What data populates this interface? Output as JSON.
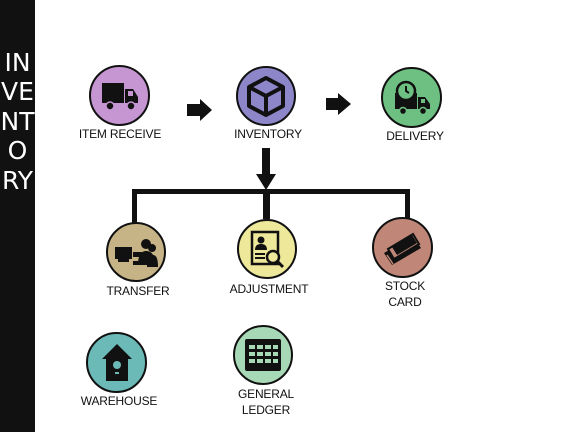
{
  "sidebar": {
    "title": "INVENTORY"
  },
  "colors": {
    "item_receive": "#c696d2",
    "inventory": "#8d86c9",
    "delivery": "#6ec082",
    "transfer": "#c7b486",
    "adjustment": "#ede89a",
    "stock_card": "#c08778",
    "warehouse": "#6cbab7",
    "general_ledger": "#a8d9b6"
  },
  "nodes": {
    "item_receive": {
      "label": "ITEM RECEIVE",
      "icon": "truck-icon"
    },
    "inventory": {
      "label": "INVENTORY",
      "icon": "box-icon"
    },
    "delivery": {
      "label": "DELIVERY",
      "icon": "delivery-truck-clock-icon"
    },
    "transfer": {
      "label": "TRANSFER",
      "icon": "transfer-people-icon"
    },
    "adjustment": {
      "label": "ADJUSTMENT",
      "icon": "document-search-icon"
    },
    "stock_card": {
      "label_line1": "STOCK",
      "label_line2": "CARD",
      "icon": "cards-icon"
    },
    "warehouse": {
      "label": "WAREHOUSE",
      "icon": "birdhouse-icon"
    },
    "general_ledger": {
      "label_line1": "GENERAL",
      "label_line2": "LEDGER",
      "icon": "ledger-grid-icon"
    }
  }
}
